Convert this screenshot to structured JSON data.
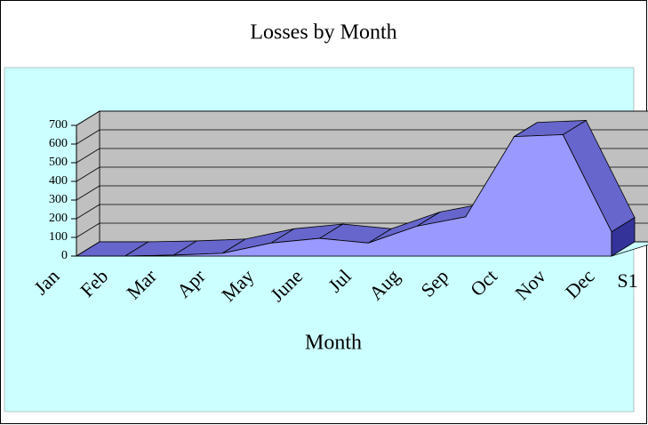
{
  "chart_data": {
    "type": "area3d",
    "title": "Losses by Month",
    "x_label": "Month",
    "categories": [
      "Jan",
      "Feb",
      "Mar",
      "Apr",
      "May",
      "June",
      "Jul",
      "Aug",
      "Sep",
      "Oct",
      "Nov",
      "Dec"
    ],
    "series": [
      {
        "name": "S1",
        "color": "#9999ff",
        "values": [
          0,
          0,
          5,
          15,
          70,
          95,
          70,
          160,
          210,
          640,
          650,
          130
        ]
      }
    ],
    "ylim": [
      0,
      700
    ],
    "yticks": [
      0,
      100,
      200,
      300,
      400,
      500,
      600,
      700
    ],
    "grid": true
  }
}
